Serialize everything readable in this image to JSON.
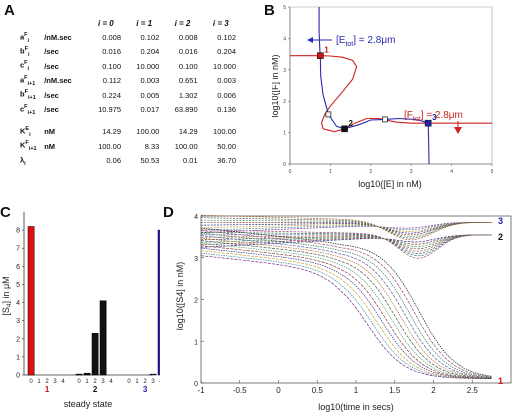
{
  "panels": {
    "a": "A",
    "b": "B",
    "c": "C",
    "d": "D"
  },
  "table": {
    "headers": [
      "i = 0",
      "i = 1",
      "i = 2",
      "i = 3"
    ],
    "rows": [
      {
        "sym": "a",
        "sup": "F",
        "sub": "i",
        "unit": "/nM.sec",
        "values": [
          "0.008",
          "0.102",
          "0.008",
          "0.102"
        ]
      },
      {
        "sym": "b",
        "sup": "F",
        "sub": "i",
        "unit": "/sec",
        "values": [
          "0.016",
          "0.204",
          "0.016",
          "0.204"
        ]
      },
      {
        "sym": "c",
        "sup": "F",
        "sub": "i",
        "unit": "/sec",
        "values": [
          "0.100",
          "10.000",
          "0.100",
          "10.000"
        ]
      },
      {
        "sym": "a",
        "sup": "F",
        "sub": "i+1",
        "unit": "/nM.sec",
        "values": [
          "0.112",
          "0.003",
          "0.651",
          "0.003"
        ]
      },
      {
        "sym": "b",
        "sup": "F",
        "sub": "i+1",
        "unit": "/sec",
        "values": [
          "0.224",
          "0.005",
          "1.302",
          "0.006"
        ]
      },
      {
        "sym": "c",
        "sup": "F",
        "sub": "i+1",
        "unit": "/sec",
        "values": [
          "10.975",
          "0.017",
          "63.890",
          "0.136"
        ]
      },
      {
        "sym": "K",
        "sup": "E",
        "sub": "i",
        "unit": "nM",
        "values": [
          "14.29",
          "100.00",
          "14.29",
          "100.00"
        ]
      },
      {
        "sym": "K",
        "sup": "F",
        "sub": "i+1",
        "unit": "nM",
        "values": [
          "100.00",
          "8.33",
          "100.00",
          "50.00"
        ]
      },
      {
        "sym": "λ",
        "sup": "",
        "sub": "i",
        "unit": "",
        "values": [
          "0.06",
          "50.53",
          "0.01",
          "36.70"
        ]
      }
    ]
  },
  "chart_data": [
    {
      "type": "line",
      "xlabel": "log10([E] in nM)",
      "ylabel": "log10([F] in nM)",
      "xlim": [
        0,
        5
      ],
      "ylim": [
        0,
        5
      ],
      "xticks": [
        "0",
        "1",
        "2",
        "3",
        "4",
        "5"
      ],
      "yticks": [
        "0",
        "1",
        "2",
        "3",
        "4",
        "5"
      ],
      "annotations": {
        "etot": "[E",
        "etot_sub": "tot",
        "etot_val": "] = 2.8μm",
        "ftot": "[F",
        "ftot_sub": "tot",
        "ftot_val": "] = 2.8μm"
      },
      "steady_states": [
        {
          "label": "1",
          "x": 0.75,
          "y": 3.45,
          "color": "#cc1111"
        },
        {
          "label": "2",
          "x": 1.35,
          "y": 1.12,
          "color": "#111111"
        },
        {
          "label": "3",
          "x": 3.42,
          "y": 1.3,
          "color": "#2222aa"
        }
      ],
      "unstable_states": [
        {
          "x": 0.95,
          "y": 1.58
        },
        {
          "x": 2.35,
          "y": 1.42
        }
      ],
      "series": [
        {
          "color": "#cc2222",
          "points": [
            [
              0,
              3.45
            ],
            [
              0.75,
              3.45
            ],
            [
              1.0,
              3.44
            ],
            [
              1.3,
              3.4
            ],
            [
              1.55,
              3.3
            ],
            [
              1.65,
              3.1
            ],
            [
              1.55,
              2.7
            ],
            [
              1.3,
              2.3
            ],
            [
              1.0,
              1.85
            ],
            [
              0.85,
              1.55
            ],
            [
              0.78,
              1.3
            ],
            [
              0.82,
              1.12
            ],
            [
              1.1,
              1.03
            ],
            [
              1.35,
              1.12
            ],
            [
              1.6,
              1.3
            ],
            [
              1.9,
              1.45
            ],
            [
              2.2,
              1.45
            ],
            [
              2.6,
              1.34
            ],
            [
              3.0,
              1.3
            ],
            [
              3.42,
              1.3
            ],
            [
              5,
              1.3
            ]
          ]
        },
        {
          "color": "#2a2ab0",
          "points": [
            [
              0.72,
              5
            ],
            [
              0.72,
              4.2
            ],
            [
              0.74,
              3.6
            ],
            [
              0.75,
              3.45
            ],
            [
              0.76,
              2.8
            ],
            [
              0.82,
              2.2
            ],
            [
              0.95,
              1.58
            ],
            [
              1.15,
              1.2
            ],
            [
              1.35,
              1.12
            ],
            [
              1.7,
              1.25
            ],
            [
              2.0,
              1.4
            ],
            [
              2.35,
              1.42
            ],
            [
              2.7,
              1.45
            ],
            [
              3.1,
              1.42
            ],
            [
              3.3,
              1.36
            ],
            [
              3.42,
              1.3
            ],
            [
              3.43,
              0.8
            ],
            [
              3.44,
              0
            ]
          ]
        }
      ]
    },
    {
      "type": "bar",
      "ylabel": "[S",
      "ylabel_sub": "4",
      "ylabel_end": "] in μM",
      "xlabel": "steady state",
      "ylim": [
        0,
        9
      ],
      "yticks": [
        "0",
        "1",
        "2",
        "3",
        "4",
        "5",
        "6",
        "7",
        "8"
      ],
      "groups": [
        {
          "label": "1",
          "label_color": "#cc1111",
          "color": "#dd1111",
          "categories": [
            "0",
            "1",
            "2",
            "3",
            "4"
          ],
          "values": [
            8.2,
            0,
            0,
            0,
            0
          ]
        },
        {
          "label": "2",
          "label_color": "#111111",
          "color": "#111111",
          "categories": [
            "0",
            "1",
            "2",
            "3",
            "4"
          ],
          "values": [
            0.05,
            0.1,
            2.3,
            4.1,
            0
          ]
        },
        {
          "label": "3",
          "label_color": "#2222aa",
          "color": "#2a22aa",
          "categories": [
            "0",
            "1",
            "2",
            "3",
            "4"
          ],
          "values": [
            0,
            0,
            0,
            0.05,
            8.0
          ]
        }
      ]
    },
    {
      "type": "line",
      "xlabel": "log10(time in secs)",
      "ylabel": "log10([S4] in nM)",
      "xlim": [
        -1,
        3
      ],
      "ylim": [
        0,
        4
      ],
      "xticks": [
        "-1",
        "-0.5",
        "0",
        "0.5",
        "1",
        "1.5",
        "2",
        "2.5"
      ],
      "curve_labels": [
        {
          "label": "3",
          "color": "#2222aa",
          "x": 2.78,
          "y": 3.88
        },
        {
          "label": "2",
          "color": "#111111",
          "x": 2.78,
          "y": 3.5
        },
        {
          "label": "1",
          "color": "#cc1111",
          "x": 2.78,
          "y": 0.05
        }
      ]
    }
  ]
}
